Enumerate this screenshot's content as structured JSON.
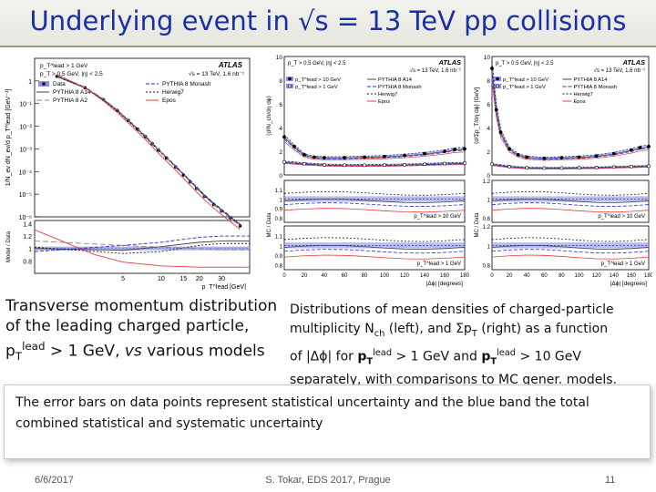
{
  "slide": {
    "title": "Underlying event in √s = 13 TeV pp collisions",
    "caption_left": {
      "line1": "Transverse momentum distribution",
      "line2": "of the leading charged particle,",
      "pt": "p",
      "pt_sub": "T",
      "pt_sup": "lead",
      "tail": " > 1 GeV, ",
      "vs": "vs",
      "end": " various  models"
    },
    "caption_right": {
      "a": "Distributions of mean densities of charged-particle",
      "b": "multiplicity N",
      "b_sub": "ch",
      "c": " (left), and Σp",
      "c_sub": "T",
      "d": " (right) as a function",
      "e": "of |Δϕ| for ",
      "p1": "p",
      "p1_sub": "T",
      "p1_sup": "lead",
      "f": " > 1 GeV and ",
      "p2": "p",
      "p2_sub": "T",
      "p2_sup": "lead",
      "g": " > 10 GeV",
      "h": "separately, with comparisons to MC gener. models."
    },
    "box_text": "The error bars on data points represent statistical uncertainty and the blue band the total combined statistical and systematic uncertainty",
    "footer": {
      "date": "6/6/2017",
      "center": "S. Tokar, EDS 2017, Prague",
      "page": "11"
    }
  },
  "colors": {
    "title": "#1a2fa8",
    "band": "#8a8ef0",
    "data": "#000000",
    "pythia_a14": "#444444",
    "pythia_monash": "#2b2bd6",
    "herwig": "#1a1a1a",
    "epos": "#e23b3b"
  },
  "chart_data": [
    {
      "type": "line",
      "logo": "ATLAS",
      "header": [
        "p_T^lead > 1 GeV",
        "p_T > 0.5 GeV, |η| < 2.5",
        "√s = 13 TeV, 1.6 nb⁻¹"
      ],
      "ylabel": "1/N_ev dN_ev/d p_T^lead [GeV⁻¹]",
      "ratio_ylabel": "Model / Data",
      "xlabel": "p_T^lead [GeV]",
      "xscale": "log",
      "yscale": "log",
      "xlim": [
        1,
        50
      ],
      "ylim": [
        1e-06,
        10
      ],
      "ratio_ylim": [
        0.6,
        1.45
      ],
      "y_ticks": [
        "1",
        "10⁻¹",
        "10⁻²",
        "10⁻³",
        "10⁻⁴",
        "10⁻⁵",
        "10⁻⁶"
      ],
      "ratio_ticks": [
        "1.4",
        "1.2",
        "1",
        "0.8"
      ],
      "x_ticks": [
        "5",
        "10",
        "15",
        "20",
        "30"
      ],
      "legend": [
        "Data",
        "PYTHIA 8 A14",
        "PYTHIA 8 Monash",
        "Herwig7",
        "PYTHIA 8 A2",
        "Epos"
      ],
      "series": [
        {
          "name": "Data",
          "x": [
            1.5,
            2.5,
            3.5,
            4.5,
            5.5,
            6.5,
            7.5,
            8.5,
            9.5,
            11,
            13,
            15,
            17,
            19,
            22,
            26,
            30,
            35,
            42
          ],
          "y": [
            1.6,
            0.5,
            0.15,
            0.05,
            0.018,
            0.0075,
            0.0035,
            0.0017,
            0.0009,
            0.0004,
            0.00016,
            7e-05,
            3.5e-05,
            1.8e-05,
            8e-06,
            3.5e-06,
            1.8e-06,
            9e-07,
            4e-07
          ]
        }
      ],
      "ratio_series": [
        {
          "name": "PYTHIA 8 A14",
          "x": [
            1,
            5,
            10,
            20,
            30,
            50
          ],
          "y": [
            1.0,
            0.97,
            1.03,
            1.1,
            1.12,
            1.12
          ]
        },
        {
          "name": "PYTHIA 8 Monash",
          "x": [
            1,
            5,
            10,
            20,
            30,
            50
          ],
          "y": [
            0.95,
            1.05,
            1.1,
            1.18,
            1.2,
            1.2
          ]
        },
        {
          "name": "Herwig7",
          "x": [
            1,
            5,
            10,
            20,
            30,
            50
          ],
          "y": [
            1.02,
            0.92,
            0.95,
            1.05,
            1.08,
            1.08
          ]
        },
        {
          "name": "PYTHIA 8 A2",
          "x": [
            1,
            5,
            10,
            20,
            30,
            50
          ],
          "y": [
            1.12,
            1.05,
            1.02,
            1.0,
            0.98,
            0.98
          ]
        },
        {
          "name": "Epos",
          "x": [
            1,
            3,
            5,
            10,
            20,
            30,
            50
          ],
          "y": [
            1.3,
            0.9,
            0.78,
            0.72,
            0.7,
            0.7,
            0.7
          ]
        }
      ]
    },
    {
      "type": "line",
      "logo": "ATLAS",
      "header": [
        "p_T > 0.5 GeV, |η| < 2.5",
        "√s = 13 TeV, 1.6 nb⁻¹"
      ],
      "ylabel": "⟨d²N_ch/dη dϕ⟩",
      "ratio_ylabel": "MC / Data",
      "xlabel": "|Δϕ| [degrees]",
      "xlim": [
        0,
        180
      ],
      "ylim": [
        0,
        10
      ],
      "y_ticks": [
        "10",
        "8",
        "6",
        "4",
        "2",
        "0"
      ],
      "x_ticks": [
        "0",
        "20",
        "40",
        "60",
        "80",
        "100",
        "120",
        "140",
        "160",
        "180"
      ],
      "ratio_ticks": [
        "1.1",
        "1",
        "0.9",
        "0.8"
      ],
      "ratio_labels": [
        "p_T^lead > 10 GeV",
        "p_T^lead > 1 GeV"
      ],
      "legend": [
        "p_T^lead > 10 GeV",
        "p_T^lead > 1 GeV",
        "PYTHIA 8 A14",
        "PYTHIA 8 Monash",
        "Herwig7",
        "Epos"
      ],
      "series": [
        {
          "name": "p_T^lead > 10 GeV",
          "x": [
            0,
            10,
            20,
            30,
            40,
            60,
            80,
            100,
            120,
            140,
            160,
            170,
            180
          ],
          "y": [
            3.2,
            2.4,
            1.7,
            1.5,
            1.45,
            1.45,
            1.5,
            1.55,
            1.65,
            1.8,
            2.0,
            2.15,
            2.2
          ]
        },
        {
          "name": "p_T^lead > 1 GeV",
          "x": [
            0,
            20,
            40,
            60,
            80,
            100,
            120,
            140,
            160,
            180
          ],
          "y": [
            1.1,
            0.95,
            0.85,
            0.82,
            0.82,
            0.83,
            0.86,
            0.9,
            0.96,
            1.0
          ]
        }
      ]
    },
    {
      "type": "line",
      "logo": "ATLAS",
      "header": [
        "p_T > 0.5 GeV, |η| < 2.5",
        "√s = 13 TeV, 1.6 nb⁻¹"
      ],
      "ylabel": "⟨d²Σp_T/dη dϕ⟩ [GeV]",
      "ratio_ylabel": "MC / Data",
      "xlabel": "|Δϕ| [degrees]",
      "xlim": [
        0,
        180
      ],
      "ylim": [
        0,
        10
      ],
      "y_ticks": [
        "10",
        "8",
        "6",
        "4",
        "2",
        "0"
      ],
      "x_ticks": [
        "0",
        "20",
        "40",
        "60",
        "80",
        "100",
        "120",
        "140",
        "160",
        "180"
      ],
      "ratio_ticks": [
        "1.2",
        "1",
        "0.8"
      ],
      "ratio_labels": [
        "p_T^lead > 10 GeV",
        "p_T^lead > 1 GeV"
      ],
      "legend": [
        "p_T^lead > 10 GeV",
        "p_T^lead > 1 GeV",
        "PYTHIA 8 A14",
        "PYTHIA 8 Monash",
        "Herwig7",
        "Epos"
      ],
      "series": [
        {
          "name": "p_T^lead > 10 GeV",
          "x": [
            0,
            5,
            10,
            20,
            30,
            40,
            60,
            80,
            100,
            120,
            140,
            160,
            170,
            180
          ],
          "y": [
            9,
            5.5,
            3.6,
            2.2,
            1.7,
            1.5,
            1.4,
            1.45,
            1.5,
            1.6,
            1.8,
            2.1,
            2.3,
            2.4
          ]
        },
        {
          "name": "p_T^lead > 1 GeV",
          "x": [
            0,
            20,
            40,
            60,
            80,
            100,
            120,
            140,
            160,
            180
          ],
          "y": [
            0.9,
            0.7,
            0.6,
            0.58,
            0.58,
            0.6,
            0.62,
            0.66,
            0.7,
            0.74
          ]
        }
      ]
    }
  ]
}
